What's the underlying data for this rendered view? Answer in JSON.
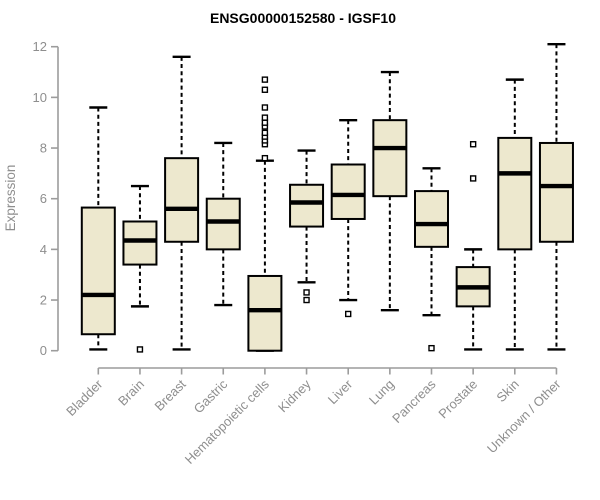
{
  "figure": {
    "title": "ENSG00000152580 - IGSF10",
    "ylabel": "Expression"
  },
  "chart_data": {
    "type": "boxplot",
    "title": "ENSG00000152580 - IGSF10",
    "xlabel": "",
    "ylabel": "Expression",
    "ylim": [
      0,
      12
    ],
    "yticks": [
      0,
      2,
      4,
      6,
      8,
      10,
      12
    ],
    "grid": false,
    "legend": "none",
    "colors": {
      "box_fill": "#EDE8CE",
      "box_stroke": "#000000",
      "median": "#000000",
      "axis": "#9C9C9C",
      "axis_text": "#8E8E8E",
      "title_text": "#000000",
      "background": "#FFFFFF"
    },
    "categories": [
      "Bladder",
      "Brain",
      "Breast",
      "Gastric",
      "Hematopoietic cells",
      "Kidney",
      "Liver",
      "Lung",
      "Pancreas",
      "Prostate",
      "Skin",
      "Unknown / Other"
    ],
    "boxes": [
      {
        "label": "Bladder",
        "low": 0.05,
        "q1": 0.65,
        "median": 2.2,
        "q3": 5.65,
        "high": 9.6,
        "outliers": []
      },
      {
        "label": "Brain",
        "low": 1.75,
        "q1": 3.4,
        "median": 4.35,
        "q3": 5.1,
        "high": 6.5,
        "outliers": [
          0.05
        ]
      },
      {
        "label": "Breast",
        "low": 0.05,
        "q1": 4.3,
        "median": 5.6,
        "q3": 7.6,
        "high": 11.6,
        "outliers": []
      },
      {
        "label": "Gastric",
        "low": 1.8,
        "q1": 4.0,
        "median": 5.1,
        "q3": 6.0,
        "high": 8.2,
        "outliers": []
      },
      {
        "label": "Hematopoietic cells",
        "low": 0.0,
        "q1": 0.0,
        "median": 1.6,
        "q3": 2.95,
        "high": 7.5,
        "outliers": [
          7.6,
          8.15,
          8.3,
          8.45,
          8.6,
          8.85,
          9.0,
          9.2,
          9.6,
          10.3,
          10.7
        ]
      },
      {
        "label": "Kidney",
        "low": 2.7,
        "q1": 4.9,
        "median": 5.85,
        "q3": 6.55,
        "high": 7.9,
        "outliers": [
          2.3,
          2.0
        ]
      },
      {
        "label": "Liver",
        "low": 2.0,
        "q1": 5.2,
        "median": 6.15,
        "q3": 7.35,
        "high": 9.1,
        "outliers": [
          1.45
        ]
      },
      {
        "label": "Lung",
        "low": 1.6,
        "q1": 6.1,
        "median": 8.0,
        "q3": 9.1,
        "high": 11.0,
        "outliers": []
      },
      {
        "label": "Pancreas",
        "low": 1.4,
        "q1": 4.1,
        "median": 5.0,
        "q3": 6.3,
        "high": 7.2,
        "outliers": [
          0.1
        ]
      },
      {
        "label": "Prostate",
        "low": 0.05,
        "q1": 1.75,
        "median": 2.5,
        "q3": 3.3,
        "high": 4.0,
        "outliers": [
          6.8,
          8.15
        ]
      },
      {
        "label": "Skin",
        "low": 0.05,
        "q1": 4.0,
        "median": 7.0,
        "q3": 8.4,
        "high": 10.7,
        "outliers": []
      },
      {
        "label": "Unknown / Other",
        "low": 0.05,
        "q1": 4.3,
        "median": 6.5,
        "q3": 8.2,
        "high": 12.1,
        "outliers": []
      }
    ]
  }
}
